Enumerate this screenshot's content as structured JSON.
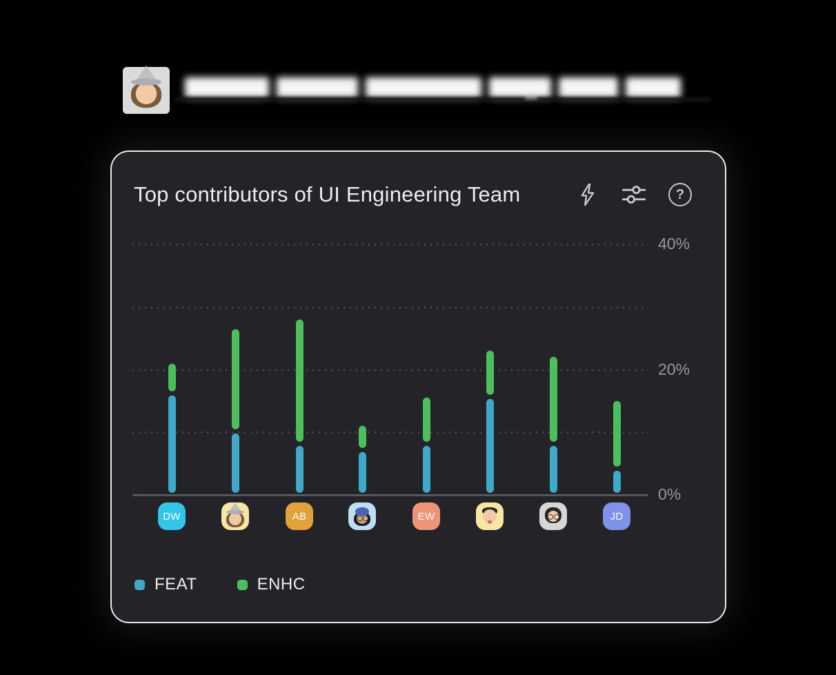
{
  "header": {
    "avatar_kind": "memoji-woman-witch-hat",
    "redacted_title": true
  },
  "card": {
    "title": "Top contributors of UI Engineering Team",
    "toolbar_icons": [
      "lightning-icon",
      "sliders-icon",
      "help-icon"
    ],
    "help_glyph": "?"
  },
  "chart_data": {
    "type": "bar",
    "stacked": true,
    "title": "Top contributors of UI Engineering Team",
    "categories": [
      "DW",
      "memoji-woman-gray-hat",
      "AB",
      "memoji-woman-blue-headwrap",
      "EW",
      "memoji-man-wink",
      "memoji-man-glasses",
      "JD"
    ],
    "series": [
      {
        "name": "FEAT",
        "color": "#3FA9C9",
        "values": [
          15.5,
          9.5,
          7.5,
          6.5,
          7.5,
          15,
          7.5,
          3.5
        ]
      },
      {
        "name": "ENHC",
        "color": "#4CBE5C",
        "values": [
          4.5,
          16,
          19.5,
          3.5,
          7,
          7,
          13.5,
          10.5
        ]
      }
    ],
    "unit": "%",
    "ylim": [
      0,
      40
    ],
    "yticks": [
      {
        "label": "40%",
        "pct": 40
      },
      {
        "label": "20%",
        "pct": 20
      },
      {
        "label": "0%",
        "pct": 0
      }
    ],
    "gridlines_pct": [
      10,
      20,
      30,
      40
    ],
    "grid_style": "dotted-horizontal",
    "legend_position": "bottom-left"
  },
  "avatars": [
    {
      "kind": "initials",
      "label": "DW",
      "bg": "#33C5E8"
    },
    {
      "kind": "memoji",
      "variant": "woman-gray-hat",
      "bg": "#FAE6A4"
    },
    {
      "kind": "initials",
      "label": "AB",
      "bg": "#E1A23C"
    },
    {
      "kind": "memoji",
      "variant": "woman-blue-headwrap",
      "bg": "#BDDFF4"
    },
    {
      "kind": "initials",
      "label": "EW",
      "bg": "#EE9478"
    },
    {
      "kind": "memoji",
      "variant": "man-wink",
      "bg": "#FAE6A4"
    },
    {
      "kind": "memoji",
      "variant": "man-glasses",
      "bg": "#D7D7D9"
    },
    {
      "kind": "initials",
      "label": "JD",
      "bg": "#8091E9"
    }
  ],
  "colors": {
    "feat": "#3FA9C9",
    "enhc": "#4CBE5C",
    "card_bg": "#242428",
    "page_bg": "#000000",
    "axis_line": "#56575C",
    "gridline": "#47484E",
    "tick_text": "#96979C",
    "title_text": "#ECECEE",
    "icon": "#C7C8CC"
  }
}
